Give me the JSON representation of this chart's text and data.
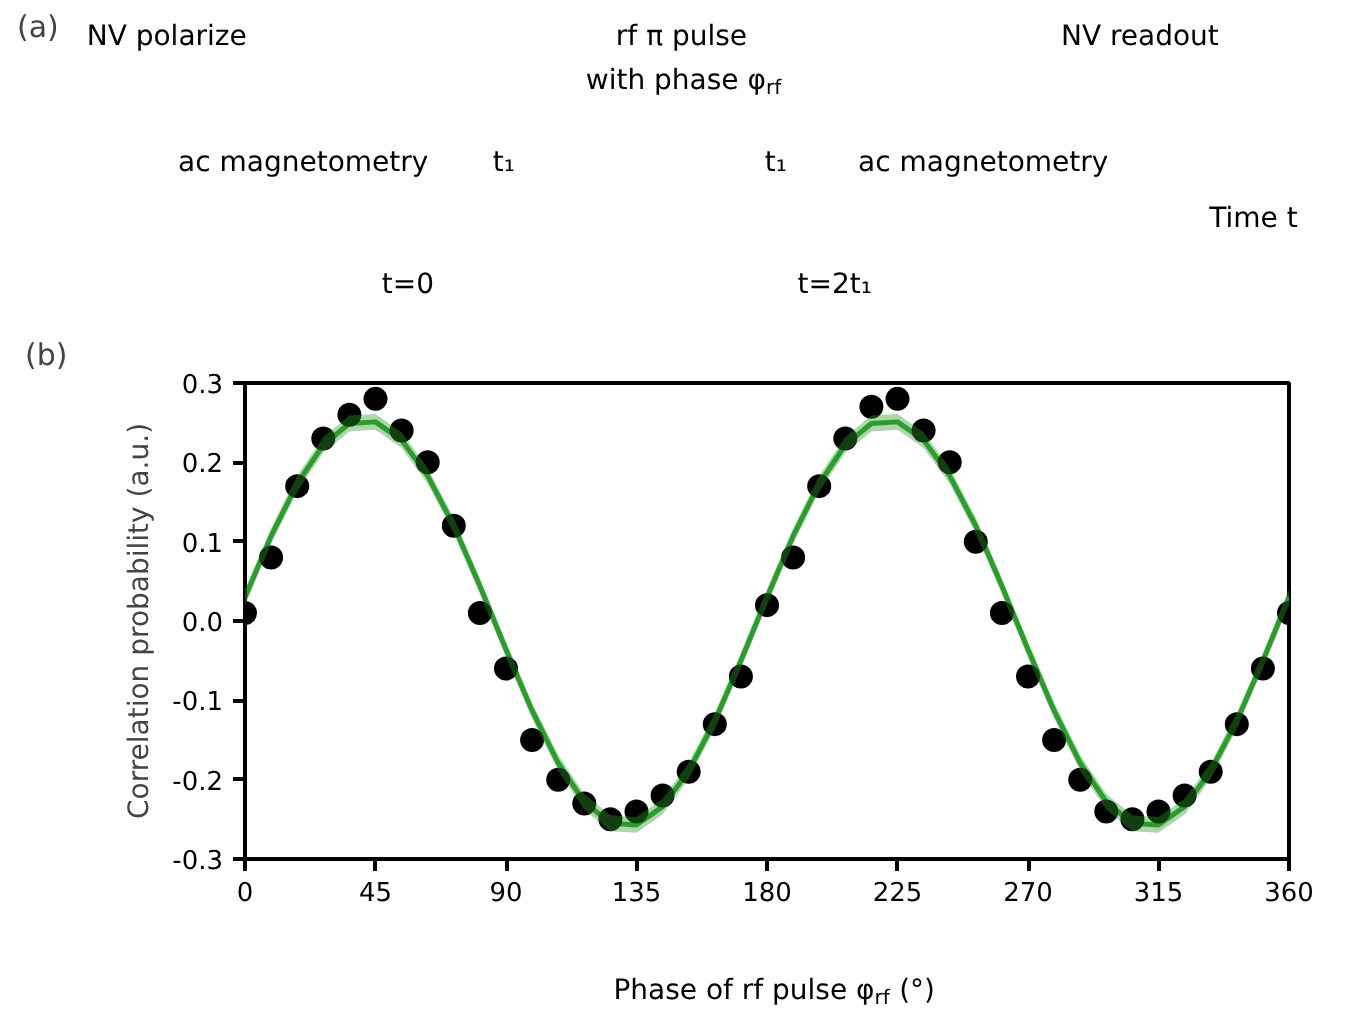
{
  "chart_data": [
    {
      "type": "other",
      "title": "(a)",
      "annotations": [
        "NV polarize",
        "rf π pulse",
        "with phase φ$_{rf}$",
        "NV readout",
        "ac magnetometry",
        "t₁",
        "t₁",
        "ac magnetometry",
        "Time t",
        "t=0",
        "t=2t₁"
      ]
    },
    {
      "type": "scatter",
      "title": "(b)",
      "xlabel": "Phase of rf pulse φ$_{rf}$ (°)",
      "ylabel": "Correlation probability (a.u.)",
      "xlim": [
        0,
        360
      ],
      "xticks": [
        0,
        45,
        90,
        135,
        180,
        225,
        270,
        315,
        360
      ],
      "ylim": [
        -0.3,
        0.3
      ],
      "yticks": [
        -0.3,
        -0.2,
        -0.1,
        {
          "value": 0,
          "label": "0.0"
        },
        0.1,
        0.2,
        0.3
      ],
      "grid": false,
      "series": [
        {
          "type": "line",
          "color": "#2e9b2e",
          "line_style": "solid",
          "x": [
            0,
            9,
            18,
            27,
            36,
            45,
            54,
            63,
            72,
            81,
            90,
            99,
            108,
            117,
            126,
            135,
            144,
            153,
            162,
            171,
            180,
            189,
            198,
            207,
            216,
            225,
            234,
            243,
            252,
            261,
            270,
            279,
            288,
            297,
            306,
            315,
            324,
            333,
            342,
            351,
            360
          ],
          "values": [
            0.03,
            0.107,
            0.173,
            0.222,
            0.249,
            0.251,
            0.228,
            0.183,
            0.12,
            0.044,
            -0.036,
            -0.113,
            -0.179,
            -0.228,
            -0.255,
            -0.257,
            -0.234,
            -0.189,
            -0.126,
            -0.05,
            0.03,
            0.107,
            0.173,
            0.222,
            0.249,
            0.251,
            0.228,
            0.183,
            0.12,
            0.044,
            -0.036,
            -0.113,
            -0.179,
            -0.228,
            -0.255,
            -0.257,
            -0.234,
            -0.189,
            -0.126,
            -0.05,
            0.03
          ],
          "lower": [
            0.02,
            0.097,
            0.163,
            0.212,
            0.239,
            0.241,
            0.218,
            0.173,
            0.11,
            0.034,
            -0.046,
            -0.123,
            -0.189,
            -0.238,
            -0.265,
            -0.267,
            -0.244,
            -0.199,
            -0.136,
            -0.06,
            0.02,
            0.097,
            0.163,
            0.212,
            0.239,
            0.241,
            0.218,
            0.173,
            0.11,
            0.034,
            -0.046,
            -0.123,
            -0.189,
            -0.238,
            -0.265,
            -0.267,
            -0.244,
            -0.199,
            -0.136,
            -0.06,
            0.02
          ],
          "upper": [
            0.04,
            0.117,
            0.183,
            0.232,
            0.259,
            0.261,
            0.238,
            0.193,
            0.13,
            0.054,
            -0.026,
            -0.103,
            -0.169,
            -0.218,
            -0.245,
            -0.247,
            -0.224,
            -0.179,
            -0.116,
            -0.04,
            0.04,
            0.117,
            0.183,
            0.232,
            0.259,
            0.261,
            0.238,
            0.193,
            0.13,
            0.054,
            -0.026,
            -0.103,
            -0.169,
            -0.218,
            -0.245,
            -0.247,
            -0.224,
            -0.179,
            -0.116,
            -0.04,
            0.04
          ]
        },
        {
          "type": "scatter",
          "color": "#000000",
          "marker": "circle",
          "x": [
            0,
            9,
            18,
            27,
            36,
            45,
            54,
            63,
            72,
            81,
            90,
            99,
            108,
            117,
            126,
            135,
            144,
            153,
            162,
            171,
            180,
            189,
            198,
            207,
            216,
            225,
            234,
            243,
            252,
            261,
            270,
            279,
            288,
            297,
            306,
            315,
            324,
            333,
            342,
            351,
            360
          ],
          "values": [
            0.01,
            0.08,
            0.17,
            0.23,
            0.26,
            0.28,
            0.24,
            0.2,
            0.12,
            0.01,
            -0.06,
            -0.15,
            -0.2,
            -0.23,
            -0.25,
            -0.24,
            -0.22,
            -0.19,
            -0.13,
            -0.07,
            0.02,
            0.08,
            0.17,
            0.23,
            0.27,
            0.28,
            0.24,
            0.2,
            0.1,
            0.01,
            -0.07,
            -0.15,
            -0.2,
            -0.24,
            -0.25,
            -0.24,
            -0.22,
            -0.19,
            -0.13,
            -0.06,
            0.01
          ]
        }
      ]
    }
  ]
}
